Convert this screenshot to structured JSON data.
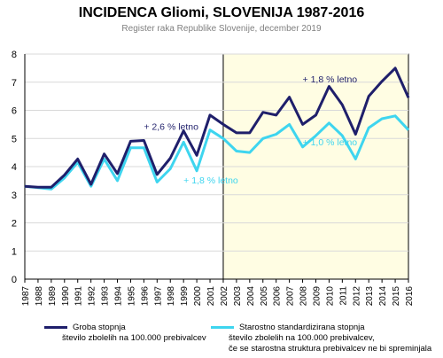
{
  "chart_data": {
    "type": "line",
    "title": "INCIDENCA Gliomi, SLOVENIJA 1987-2016",
    "subtitle": "Register raka Republike Slovenije, december 2019",
    "xlabel": "",
    "ylabel": "",
    "ylim": [
      0,
      8
    ],
    "yticks": [
      "0",
      "1",
      "2",
      "3",
      "4",
      "5",
      "6",
      "7",
      "8"
    ],
    "x": [
      "1987",
      "1988",
      "1989",
      "1990",
      "1991",
      "1992",
      "1993",
      "1994",
      "1995",
      "1996",
      "1997",
      "1998",
      "1999",
      "2000",
      "2001",
      "2002",
      "2003",
      "2004",
      "2005",
      "2006",
      "2007",
      "2008",
      "2009",
      "2010",
      "2011",
      "2012",
      "2013",
      "2014",
      "2015",
      "2016"
    ],
    "grid": true,
    "highlight_period": [
      "2002",
      "2016"
    ],
    "series": [
      {
        "name": "Groba stopnja",
        "description": "število zbolelih na 100.000 prebivalcev",
        "color": "#1f1f6b",
        "values": [
          3.3,
          3.27,
          3.27,
          3.7,
          4.27,
          3.37,
          4.45,
          3.75,
          4.9,
          4.93,
          3.72,
          4.3,
          5.27,
          4.4,
          5.83,
          5.5,
          5.2,
          5.2,
          5.93,
          5.83,
          6.47,
          5.5,
          5.83,
          6.85,
          6.2,
          5.15,
          6.5,
          7.03,
          7.5,
          6.45
        ]
      },
      {
        "name": "Starostno standardizirana stopnja",
        "description": "število zbolelih na 100.000 prebivalcev,",
        "description2": "če se starostna struktura prebivalcev ne bi spreminjala",
        "color": "#3ed5ef",
        "values": [
          3.3,
          3.25,
          3.2,
          3.6,
          4.15,
          3.3,
          4.27,
          3.5,
          4.67,
          4.67,
          3.45,
          3.92,
          4.87,
          3.85,
          5.3,
          5.0,
          4.55,
          4.5,
          5.0,
          5.15,
          5.5,
          4.7,
          5.1,
          5.55,
          5.1,
          4.27,
          5.38,
          5.7,
          5.8,
          5.3
        ]
      }
    ],
    "annotations": [
      {
        "text": "+ 2,6 % letno",
        "color": "#1f1f6b",
        "x": "1996",
        "y": 5.3
      },
      {
        "text": "+ 1,8 % letno",
        "color": "#3ed5ef",
        "x": "1999",
        "y": 3.4
      },
      {
        "text": "+ 1,8 % letno",
        "color": "#1f1f6b",
        "x": "2008",
        "y": 7.0
      },
      {
        "text": "+ 1,0 % letno",
        "color": "#3ed5ef",
        "x": "2008",
        "y": 4.75
      }
    ]
  }
}
